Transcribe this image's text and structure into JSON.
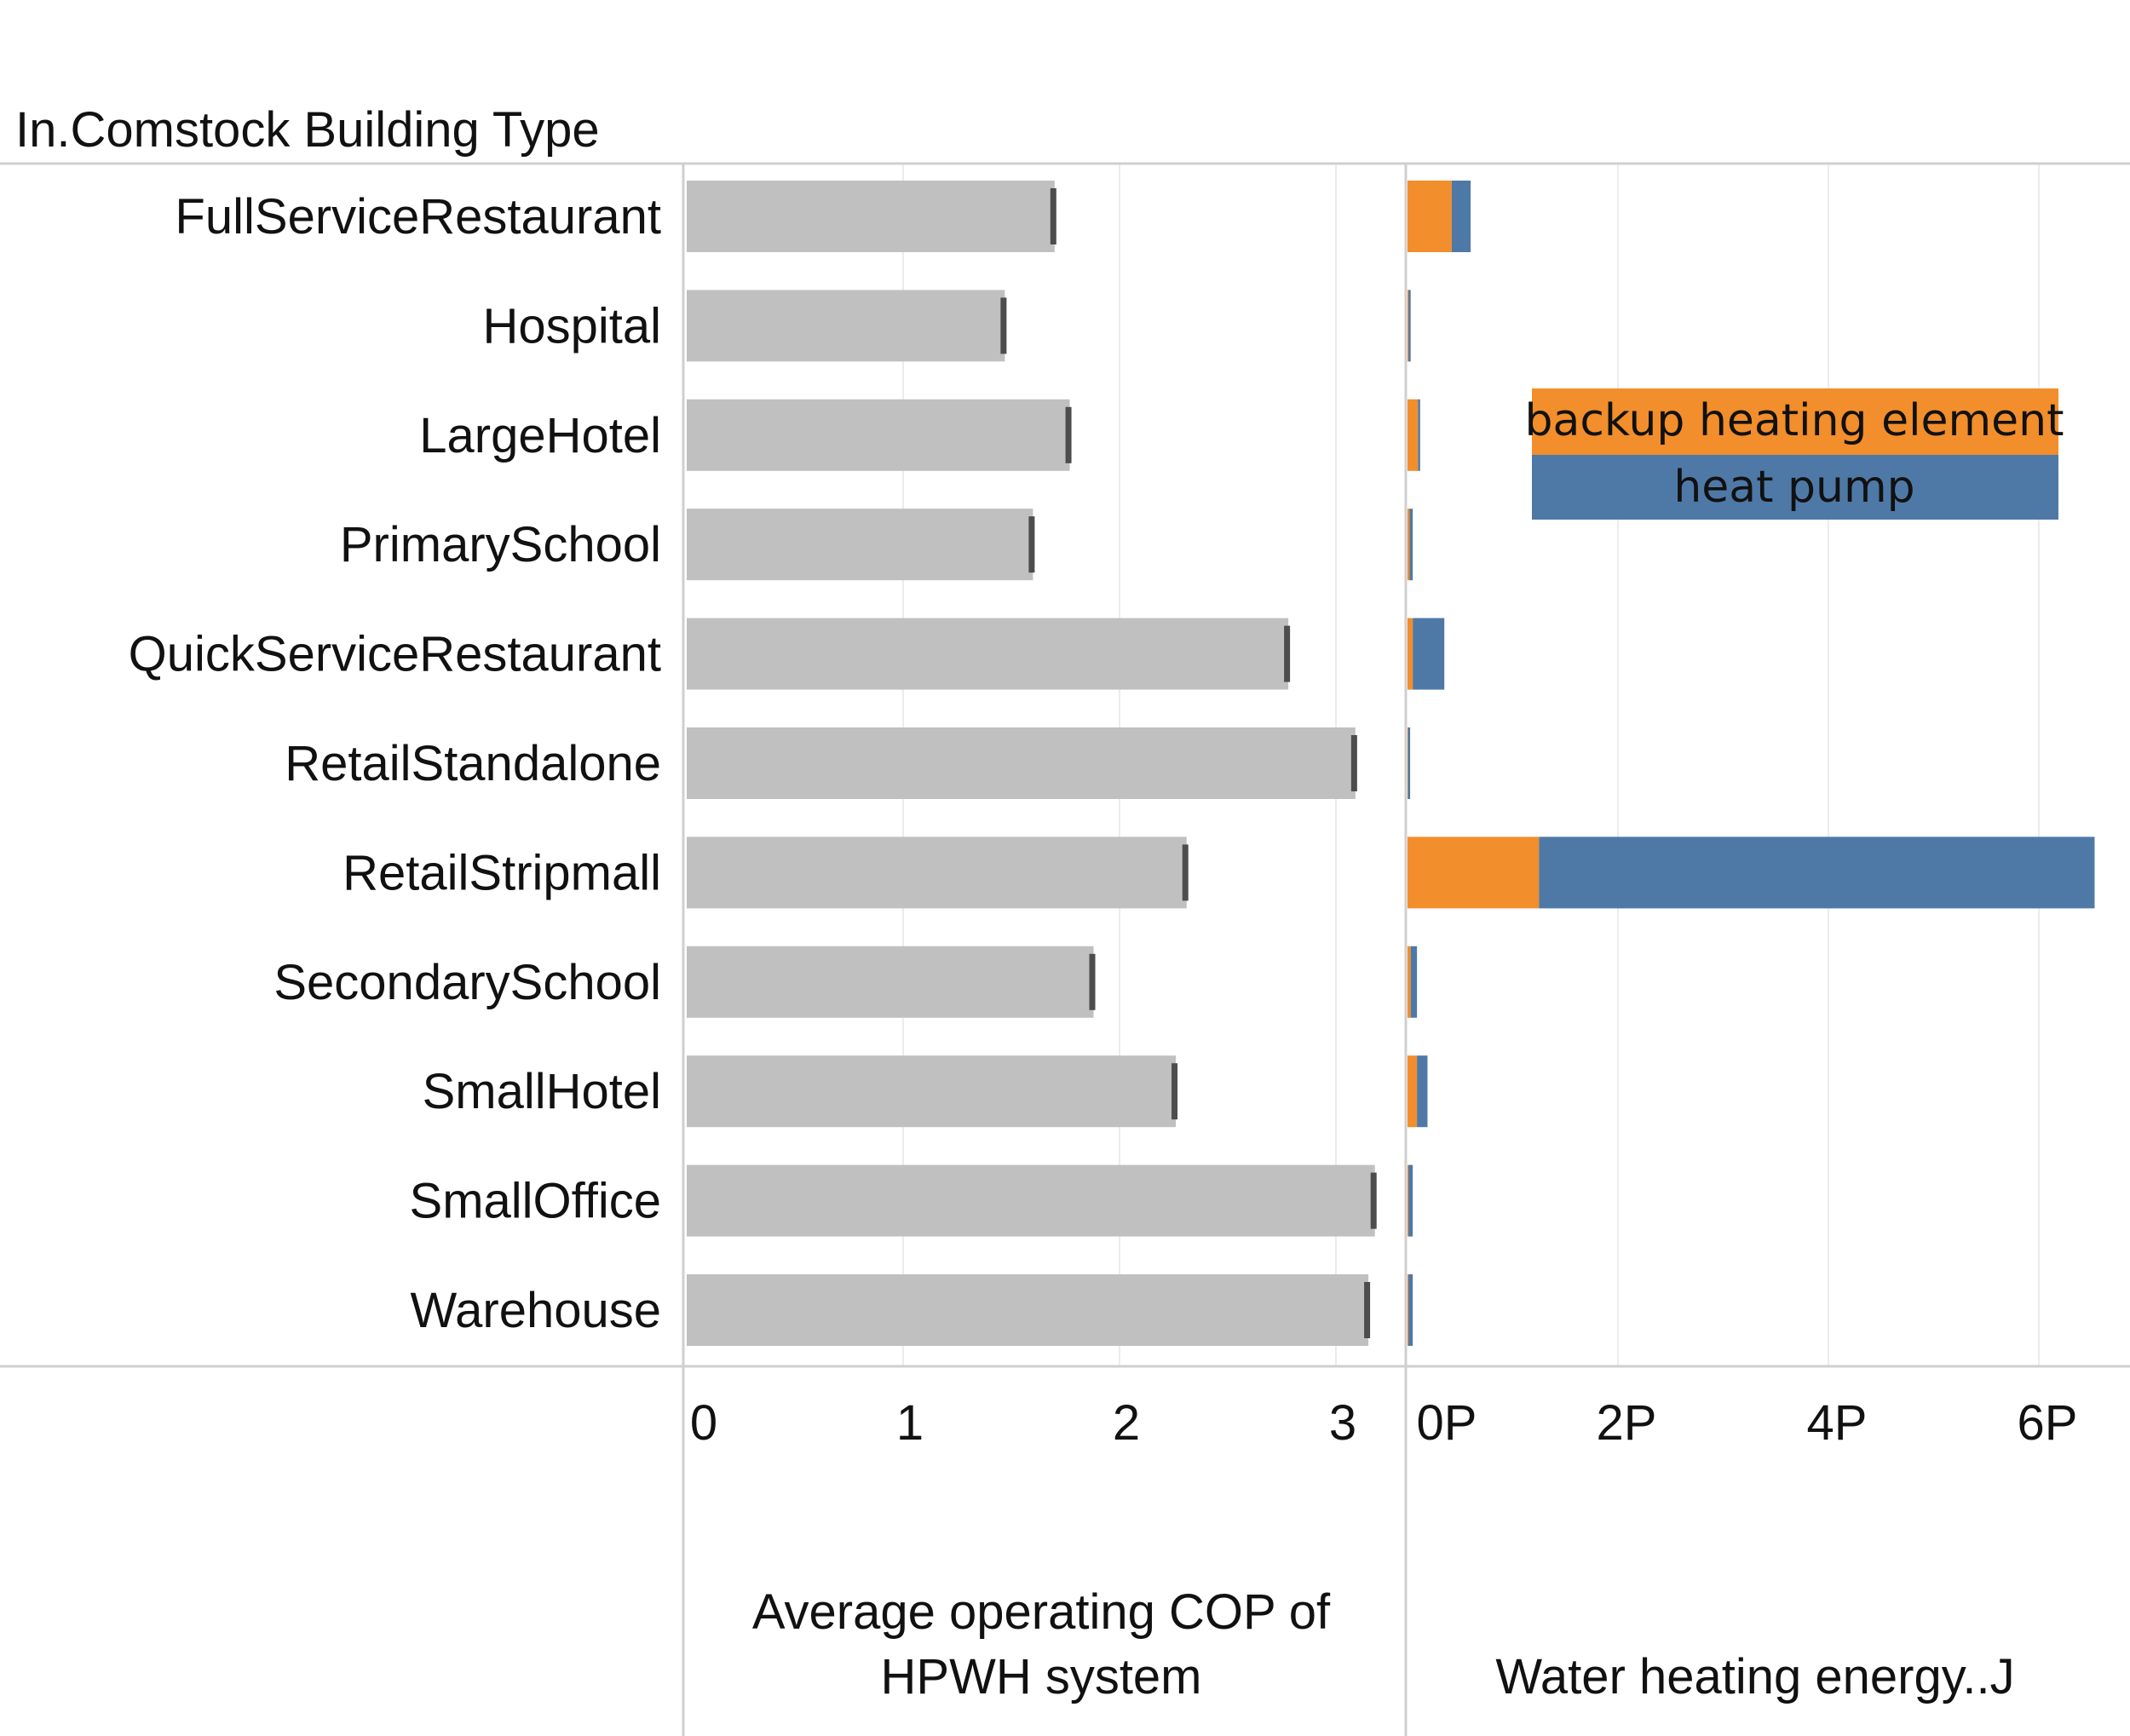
{
  "chart_data": {
    "type": "bar",
    "header_label": "In.Comstock Building Type",
    "categories": [
      "FullServiceRestaurant",
      "Hospital",
      "LargeHotel",
      "PrimarySchool",
      "QuickServiceRestaurant",
      "RetailStandalone",
      "RetailStripmall",
      "SecondarySchool",
      "SmallHotel",
      "SmallOffice",
      "Warehouse"
    ],
    "panels": [
      {
        "type": "bar",
        "xlabel": "Average operating COP of HPWH system",
        "xlabel_lines": [
          "Average operating COP of",
          "HPWH system"
        ],
        "xlim": [
          0,
          3.2
        ],
        "ticks": [
          0,
          1,
          2,
          3
        ],
        "tick_labels": [
          "0",
          "1",
          "2",
          "3"
        ],
        "bar_color": "#c0c0c0",
        "marker_color": "#4d4d4d",
        "values": [
          1.7,
          1.47,
          1.77,
          1.6,
          2.78,
          3.09,
          2.31,
          1.88,
          2.26,
          3.18,
          3.15
        ]
      },
      {
        "type": "stacked-bar",
        "xlabel": "Water heating energy..J",
        "xlim": [
          0,
          6.5
        ],
        "ticks": [
          0,
          2,
          4,
          6
        ],
        "tick_labels": [
          "0P",
          "2P",
          "4P",
          "6P"
        ],
        "unit": "PJ",
        "legend_position": "top-right",
        "series": [
          {
            "name": "backup heating element",
            "color": "#f28e2b",
            "values": [
              0.42,
              0.01,
              0.1,
              0.02,
              0.05,
              0.005,
              1.25,
              0.03,
              0.09,
              0.01,
              0.01
            ]
          },
          {
            "name": "heat pump",
            "color": "#4e79a7",
            "values": [
              0.18,
              0.02,
              0.02,
              0.03,
              0.3,
              0.02,
              5.28,
              0.06,
              0.1,
              0.04,
              0.04
            ]
          }
        ]
      }
    ],
    "grid": true
  }
}
